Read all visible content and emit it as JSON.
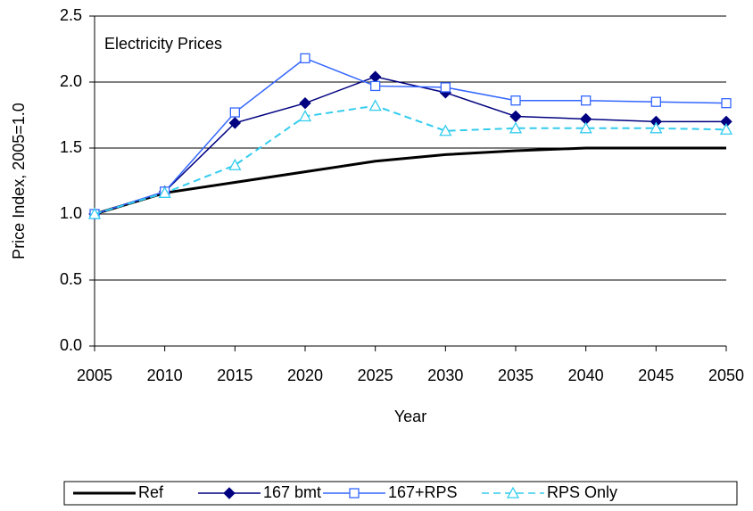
{
  "chart_data": {
    "type": "line",
    "title": "Electricity Prices",
    "x_label": "Year",
    "y_label": "Price Index, 2005=1.0",
    "x": [
      2005,
      2010,
      2015,
      2020,
      2025,
      2030,
      2035,
      2040,
      2045,
      2050
    ],
    "xlim": [
      2005,
      2050
    ],
    "xticks": [
      2005,
      2010,
      2015,
      2020,
      2025,
      2030,
      2035,
      2040,
      2045,
      2050
    ],
    "ylim": [
      0,
      2.5
    ],
    "yticks": [
      {
        "value": 0,
        "label": "0.0"
      },
      0.5,
      {
        "value": 1,
        "label": "1.0"
      },
      1.5,
      {
        "value": 2,
        "label": "2.0"
      },
      2.5
    ],
    "grid": true,
    "legend": "bottom",
    "series": [
      {
        "name": "Ref",
        "color": "#000000",
        "marker": null,
        "dashed": false,
        "values": [
          1.0,
          1.16,
          1.24,
          1.32,
          1.4,
          1.45,
          1.48,
          1.5,
          1.5,
          1.5
        ]
      },
      {
        "name": "167 bmt",
        "color": "#000080",
        "marker": "diamond",
        "dashed": false,
        "values": [
          1.0,
          1.17,
          1.69,
          1.84,
          2.04,
          1.92,
          1.74,
          1.72,
          1.7,
          1.7
        ]
      },
      {
        "name": "167+RPS",
        "color": "#3366ff",
        "marker": "square",
        "dashed": false,
        "values": [
          1.0,
          1.17,
          1.77,
          2.18,
          1.97,
          1.96,
          1.86,
          1.86,
          1.85,
          1.84
        ]
      },
      {
        "name": "RPS Only",
        "color": "#33ccee",
        "marker": "triangle",
        "dashed": true,
        "values": [
          1.0,
          1.16,
          1.37,
          1.74,
          1.82,
          1.63,
          1.65,
          1.65,
          1.65,
          1.64
        ]
      }
    ]
  }
}
